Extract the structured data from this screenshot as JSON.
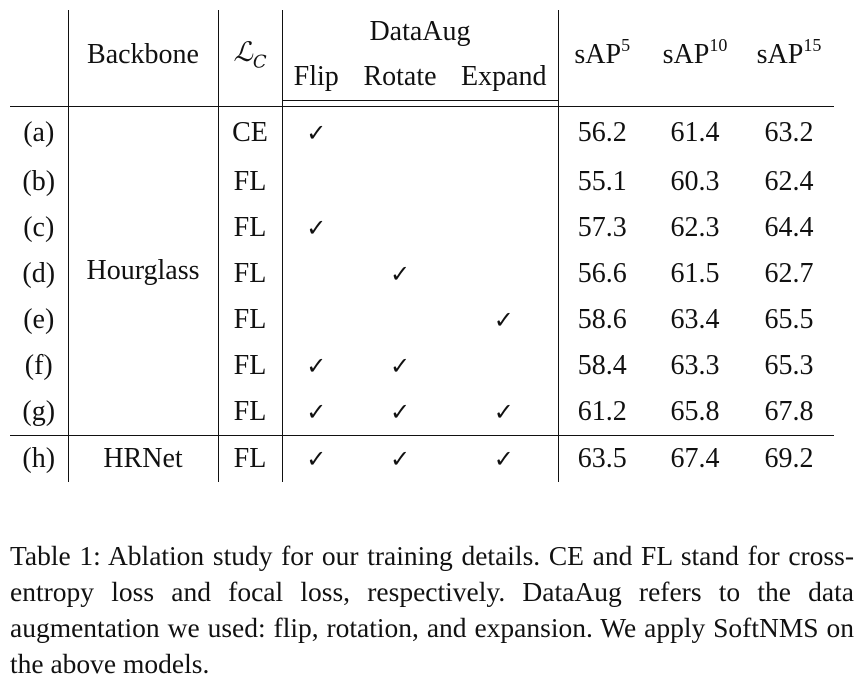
{
  "table": {
    "headers": {
      "backbone": "Backbone",
      "loss_symbol": "ℒ",
      "loss_subscript": "C",
      "dataaug": "DataAug",
      "flip": "Flip",
      "rotate": "Rotate",
      "expand": "Expand",
      "sap5_base": "sAP",
      "sap5_sup": "5",
      "sap10_base": "sAP",
      "sap10_sup": "10",
      "sap15_base": "sAP",
      "sap15_sup": "15"
    },
    "check_mark": "✓",
    "hourglass_label": "Hourglass",
    "hrnet_label": "HRNet",
    "rows": [
      {
        "id": "(a)",
        "loss": "CE",
        "flip": "✓",
        "rotate": "",
        "expand": "",
        "sap5": "56.2",
        "sap10": "61.4",
        "sap15": "63.2"
      },
      {
        "id": "(b)",
        "loss": "FL",
        "flip": "",
        "rotate": "",
        "expand": "",
        "sap5": "55.1",
        "sap10": "60.3",
        "sap15": "62.4"
      },
      {
        "id": "(c)",
        "loss": "FL",
        "flip": "✓",
        "rotate": "",
        "expand": "",
        "sap5": "57.3",
        "sap10": "62.3",
        "sap15": "64.4"
      },
      {
        "id": "(d)",
        "loss": "FL",
        "flip": "",
        "rotate": "✓",
        "expand": "",
        "sap5": "56.6",
        "sap10": "61.5",
        "sap15": "62.7"
      },
      {
        "id": "(e)",
        "loss": "FL",
        "flip": "",
        "rotate": "",
        "expand": "✓",
        "sap5": "58.6",
        "sap10": "63.4",
        "sap15": "65.5"
      },
      {
        "id": "(f)",
        "loss": "FL",
        "flip": "✓",
        "rotate": "✓",
        "expand": "",
        "sap5": "58.4",
        "sap10": "63.3",
        "sap15": "65.3"
      },
      {
        "id": "(g)",
        "loss": "FL",
        "flip": "✓",
        "rotate": "✓",
        "expand": "✓",
        "sap5": "61.2",
        "sap10": "65.8",
        "sap15": "67.8"
      },
      {
        "id": "(h)",
        "loss": "FL",
        "flip": "✓",
        "rotate": "✓",
        "expand": "✓",
        "sap5": "63.5",
        "sap10": "67.4",
        "sap15": "69.2"
      }
    ]
  },
  "caption": {
    "label": "Table 1:",
    "text": " Ablation study for our training details. CE and FL stand for cross-entropy loss and focal loss, respectively. DataAug refers to the data augmentation we used: flip, rotation, and expansion. We apply SoftNMS on the above models."
  }
}
